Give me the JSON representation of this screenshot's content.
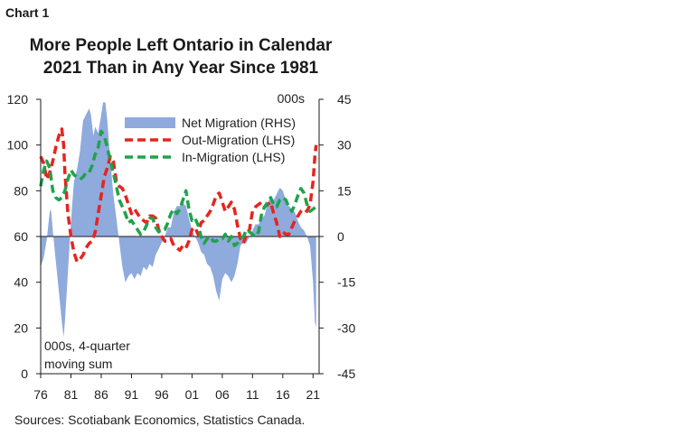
{
  "chart_label": "Chart 1",
  "chart_data": {
    "type": "area+line",
    "title": "More People Left Ontario in Calendar 2021 Than in Any Year Since 1981",
    "title_lines": [
      "More People Left Ontario in Calendar",
      "2021 Than in Any Year Since 1981"
    ],
    "left_axis": {
      "ylim": [
        0,
        120
      ],
      "ticks": [
        "0",
        "20",
        "40",
        "60",
        "80",
        "100",
        "120"
      ]
    },
    "right_axis": {
      "unit_label": "000s",
      "ylim": [
        -45,
        45
      ],
      "ticks": [
        "-45",
        "-30",
        "-15",
        "0",
        "15",
        "30",
        "45"
      ]
    },
    "x_axis": {
      "xlim": [
        1976,
        2022
      ],
      "ticks": [
        "76",
        "81",
        "86",
        "91",
        "96",
        "01",
        "06",
        "11",
        "16",
        "21"
      ]
    },
    "annotation": [
      "000s, 4-quarter",
      "moving sum"
    ],
    "legend": [
      {
        "name": "Net Migration (RHS)",
        "style": "area",
        "color": "#8faadc"
      },
      {
        "name": "Out-Migration (LHS)",
        "style": "dashed",
        "color": "#e8231e"
      },
      {
        "name": "In-Migration (LHS)",
        "style": "dashed",
        "color": "#1fa34a"
      }
    ],
    "series": [
      {
        "name": "Net Migration (RHS)",
        "axis": "right",
        "points": [
          [
            1976,
            -10
          ],
          [
            1976.5,
            -7
          ],
          [
            1977,
            -1
          ],
          [
            1977.5,
            8
          ],
          [
            1977.7,
            9
          ],
          [
            1978,
            2
          ],
          [
            1978.5,
            -8
          ],
          [
            1979,
            -18
          ],
          [
            1979.5,
            -28
          ],
          [
            1979.8,
            -33
          ],
          [
            1980,
            -28
          ],
          [
            1980.5,
            -12
          ],
          [
            1981,
            5
          ],
          [
            1981.5,
            18
          ],
          [
            1982,
            22
          ],
          [
            1982.5,
            28
          ],
          [
            1983,
            38
          ],
          [
            1983.5,
            40
          ],
          [
            1984,
            42
          ],
          [
            1984.3,
            40
          ],
          [
            1984.7,
            33
          ],
          [
            1985,
            36
          ],
          [
            1985.5,
            34
          ],
          [
            1986,
            40
          ],
          [
            1986.3,
            44
          ],
          [
            1986.7,
            44
          ],
          [
            1987,
            38
          ],
          [
            1987.5,
            25
          ],
          [
            1988,
            14
          ],
          [
            1988.5,
            6
          ],
          [
            1989,
            -2
          ],
          [
            1989.5,
            -10
          ],
          [
            1990,
            -15
          ],
          [
            1990.5,
            -13
          ],
          [
            1991,
            -12
          ],
          [
            1991.5,
            -14
          ],
          [
            1992,
            -12
          ],
          [
            1992.5,
            -13
          ],
          [
            1993,
            -10
          ],
          [
            1993.5,
            -11
          ],
          [
            1994,
            -9
          ],
          [
            1994.5,
            -10
          ],
          [
            1995,
            -6
          ],
          [
            1995.5,
            -4
          ],
          [
            1996,
            -2
          ],
          [
            1996.5,
            0
          ],
          [
            1997,
            3
          ],
          [
            1997.5,
            3
          ],
          [
            1998,
            8
          ],
          [
            1998.5,
            10
          ],
          [
            1999,
            10
          ],
          [
            1999.5,
            11
          ],
          [
            2000,
            10
          ],
          [
            2000.5,
            6
          ],
          [
            2001,
            2
          ],
          [
            2001.5,
            0
          ],
          [
            2002,
            -2
          ],
          [
            2002.5,
            -5
          ],
          [
            2003,
            -6
          ],
          [
            2003.5,
            -9
          ],
          [
            2004,
            -10
          ],
          [
            2004.5,
            -13
          ],
          [
            2005,
            -18
          ],
          [
            2005.5,
            -21
          ],
          [
            2006,
            -14
          ],
          [
            2006.5,
            -12
          ],
          [
            2007,
            -13
          ],
          [
            2007.5,
            -15
          ],
          [
            2008,
            -13
          ],
          [
            2008.5,
            -9
          ],
          [
            2009,
            -3
          ],
          [
            2009.5,
            -2
          ],
          [
            2010,
            -2
          ],
          [
            2010.5,
            0
          ],
          [
            2011,
            2
          ],
          [
            2011.5,
            4
          ],
          [
            2012,
            4
          ],
          [
            2012.5,
            6
          ],
          [
            2013,
            7
          ],
          [
            2013.5,
            11
          ],
          [
            2014,
            13
          ],
          [
            2014.5,
            12
          ],
          [
            2015,
            14
          ],
          [
            2015.5,
            16
          ],
          [
            2016,
            15
          ],
          [
            2016.5,
            12
          ],
          [
            2017,
            10
          ],
          [
            2017.5,
            9
          ],
          [
            2018,
            8
          ],
          [
            2018.5,
            5
          ],
          [
            2019,
            3
          ],
          [
            2019.5,
            2
          ],
          [
            2020,
            0
          ],
          [
            2020.5,
            -3
          ],
          [
            2021,
            -15
          ],
          [
            2021.3,
            -28
          ],
          [
            2021.5,
            -30
          ]
        ]
      },
      {
        "name": "Out-Migration (LHS)",
        "axis": "left",
        "points": [
          [
            1976,
            95
          ],
          [
            1976.5,
            92
          ],
          [
            1977,
            85
          ],
          [
            1977.5,
            88
          ],
          [
            1978,
            93
          ],
          [
            1978.5,
            99
          ],
          [
            1979,
            104
          ],
          [
            1979.5,
            107
          ],
          [
            1979.8,
            100
          ],
          [
            1980,
            88
          ],
          [
            1980.5,
            70
          ],
          [
            1981,
            60
          ],
          [
            1981.5,
            53
          ],
          [
            1982,
            49
          ],
          [
            1982.5,
            50
          ],
          [
            1983,
            52
          ],
          [
            1983.5,
            55
          ],
          [
            1984,
            57
          ],
          [
            1984.5,
            58
          ],
          [
            1985,
            62
          ],
          [
            1985.5,
            70
          ],
          [
            1986,
            78
          ],
          [
            1986.5,
            86
          ],
          [
            1987,
            90
          ],
          [
            1987.5,
            95
          ],
          [
            1988,
            93
          ],
          [
            1988.5,
            84
          ],
          [
            1989,
            82
          ],
          [
            1989.5,
            81
          ],
          [
            1990,
            78
          ],
          [
            1990.5,
            74
          ],
          [
            1991,
            70
          ],
          [
            1991.5,
            72
          ],
          [
            1992,
            70
          ],
          [
            1992.5,
            68
          ],
          [
            1993,
            67
          ],
          [
            1993.5,
            66
          ],
          [
            1994,
            69
          ],
          [
            1994.5,
            69
          ],
          [
            1995,
            68
          ],
          [
            1995.5,
            63
          ],
          [
            1996,
            60
          ],
          [
            1996.5,
            58
          ],
          [
            1997,
            58
          ],
          [
            1997.5,
            59
          ],
          [
            1998,
            56
          ],
          [
            1998.5,
            55
          ],
          [
            1999,
            54
          ],
          [
            1999.5,
            56
          ],
          [
            2000,
            55
          ],
          [
            2000.5,
            58
          ],
          [
            2001,
            63
          ],
          [
            2001.5,
            64
          ],
          [
            2002,
            61
          ],
          [
            2002.5,
            66
          ],
          [
            2003,
            67
          ],
          [
            2003.5,
            69
          ],
          [
            2004,
            71
          ],
          [
            2004.5,
            74
          ],
          [
            2005,
            78
          ],
          [
            2005.5,
            79
          ],
          [
            2006,
            75
          ],
          [
            2006.5,
            71
          ],
          [
            2007,
            73
          ],
          [
            2007.5,
            75
          ],
          [
            2008,
            72
          ],
          [
            2008.5,
            65
          ],
          [
            2009,
            59
          ],
          [
            2009.5,
            57
          ],
          [
            2010,
            61
          ],
          [
            2010.5,
            63
          ],
          [
            2011,
            71
          ],
          [
            2011.5,
            73
          ],
          [
            2012,
            74
          ],
          [
            2012.5,
            75
          ],
          [
            2013,
            73
          ],
          [
            2013.5,
            74
          ],
          [
            2014,
            75
          ],
          [
            2014.5,
            70
          ],
          [
            2015,
            66
          ],
          [
            2015.5,
            60
          ],
          [
            2016,
            62
          ],
          [
            2016.5,
            61
          ],
          [
            2017,
            61
          ],
          [
            2017.5,
            64
          ],
          [
            2018,
            67
          ],
          [
            2018.5,
            69
          ],
          [
            2019,
            71
          ],
          [
            2019.5,
            72
          ],
          [
            2020,
            71
          ],
          [
            2020.5,
            74
          ],
          [
            2021,
            84
          ],
          [
            2021.3,
            95
          ],
          [
            2021.5,
            100
          ]
        ]
      },
      {
        "name": "In-Migration (LHS)",
        "axis": "left",
        "points": [
          [
            1976,
            82
          ],
          [
            1976.5,
            89
          ],
          [
            1977,
            93
          ],
          [
            1977.5,
            90
          ],
          [
            1978,
            80
          ],
          [
            1978.5,
            77
          ],
          [
            1979,
            76
          ],
          [
            1979.5,
            77
          ],
          [
            1980,
            80
          ],
          [
            1980.5,
            85
          ],
          [
            1981,
            89
          ],
          [
            1981.5,
            87
          ],
          [
            1982,
            86
          ],
          [
            1982.5,
            85
          ],
          [
            1983,
            86
          ],
          [
            1983.5,
            88
          ],
          [
            1984,
            88
          ],
          [
            1984.5,
            91
          ],
          [
            1985,
            96
          ],
          [
            1985.5,
            99
          ],
          [
            1986,
            106
          ],
          [
            1986.5,
            104
          ],
          [
            1987,
            99
          ],
          [
            1987.5,
            93
          ],
          [
            1988,
            88
          ],
          [
            1988.5,
            82
          ],
          [
            1989,
            76
          ],
          [
            1989.5,
            73
          ],
          [
            1990,
            70
          ],
          [
            1990.5,
            66
          ],
          [
            1991,
            67
          ],
          [
            1991.5,
            65
          ],
          [
            1992,
            63
          ],
          [
            1992.5,
            61
          ],
          [
            1993,
            62
          ],
          [
            1993.5,
            65
          ],
          [
            1994,
            68
          ],
          [
            1994.5,
            68
          ],
          [
            1995,
            64
          ],
          [
            1995.5,
            62
          ],
          [
            1996,
            63
          ],
          [
            1996.5,
            63
          ],
          [
            1997,
            66
          ],
          [
            1997.5,
            70
          ],
          [
            1998,
            72
          ],
          [
            1998.5,
            70
          ],
          [
            1999,
            72
          ],
          [
            1999.5,
            76
          ],
          [
            2000,
            80
          ],
          [
            2000.5,
            72
          ],
          [
            2001,
            67
          ],
          [
            2001.5,
            68
          ],
          [
            2002,
            65
          ],
          [
            2002.5,
            60
          ],
          [
            2003,
            57
          ],
          [
            2003.5,
            59
          ],
          [
            2004,
            60
          ],
          [
            2004.5,
            58
          ],
          [
            2005,
            58
          ],
          [
            2005.5,
            59
          ],
          [
            2006,
            59
          ],
          [
            2006.5,
            61
          ],
          [
            2007,
            58
          ],
          [
            2007.5,
            60
          ],
          [
            2008,
            56
          ],
          [
            2008.5,
            57
          ],
          [
            2009,
            59
          ],
          [
            2009.5,
            60
          ],
          [
            2010,
            63
          ],
          [
            2010.5,
            62
          ],
          [
            2011,
            61
          ],
          [
            2011.5,
            60
          ],
          [
            2012,
            62
          ],
          [
            2012.5,
            70
          ],
          [
            2013,
            73
          ],
          [
            2013.5,
            75
          ],
          [
            2014,
            77
          ],
          [
            2014.5,
            74
          ],
          [
            2015,
            73
          ],
          [
            2015.5,
            76
          ],
          [
            2016,
            77
          ],
          [
            2016.5,
            76
          ],
          [
            2017,
            73
          ],
          [
            2017.5,
            71
          ],
          [
            2018,
            74
          ],
          [
            2018.5,
            78
          ],
          [
            2019,
            81
          ],
          [
            2019.5,
            79
          ],
          [
            2020,
            74
          ],
          [
            2020.5,
            71
          ],
          [
            2021,
            72
          ],
          [
            2021.5,
            73
          ]
        ]
      }
    ]
  },
  "source": "Sources: Scotiabank Economics, Statistics Canada."
}
